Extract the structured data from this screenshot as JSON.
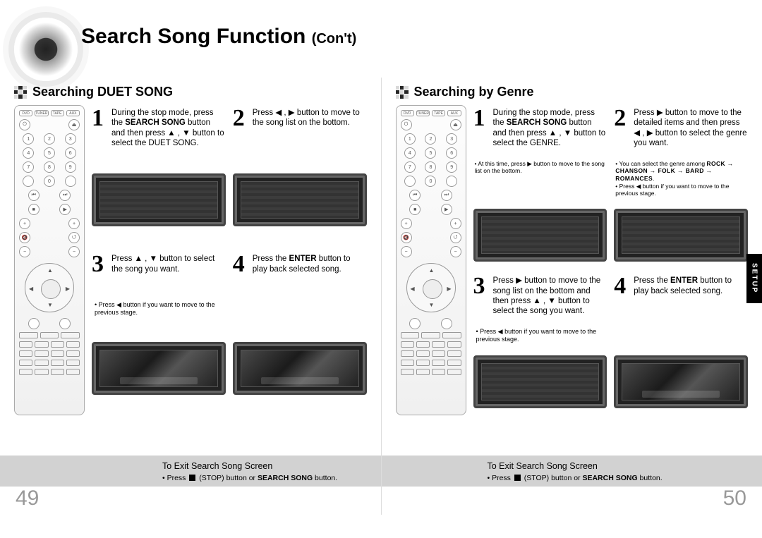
{
  "title_main": "Search Song Function",
  "title_cont": "(Con't)",
  "side_tab": "SETUP",
  "exit_head": "To Exit Search Song Screen",
  "exit_note_a": "Press ",
  "exit_note_b": " (STOP) button or ",
  "exit_note_bold": "SEARCH SONG",
  "exit_note_c": " button.",
  "left": {
    "section": "Searching DUET SONG",
    "step1": "During the stop mode, press the <b>SEARCH SONG</b> button and then press <span class='sym'>▲</span> , <span class='sym'>▼</span> button to select the DUET SONG.",
    "step2": "Press <span class='sym'>◀</span> , <span class='sym'>▶</span> button to move to the song list on the bottom.",
    "step3": "Press <span class='sym'>▲</span> , <span class='sym'>▼</span> button to select the song you want.",
    "step4": "Press the <b>ENTER</b> button to play back selected song.",
    "fine3": "Press <span class='sym'>◀</span> button if you want to move to the previous stage.",
    "pagenum": "49"
  },
  "right": {
    "section": "Searching by Genre",
    "step1": "During the stop mode, press the <b>SEARCH SONG</b> button and then press <span class='sym'>▲</span> , <span class='sym'>▼</span> button to select the GENRE.",
    "step2": "Press <span class='sym'>▶</span> button to move to the detailed items and then press <span class='sym'>◀</span> , <span class='sym'>▶</span> button to select the genre you want.",
    "fine1": "At this time, press <span class='sym'>▶</span> button to move to the song list on the bottom.",
    "fine2a": "You can select the genre among ",
    "fine2b": "ROCK → CHANSON → FOLK → BARD → ROMANCES",
    "fine3": "Press <span class='sym'>◀</span> button if you want to move to the previous stage.",
    "step3": "Press <span class='sym'>▶</span> button to move to the song list on the bottom and then press <span class='sym'>▲</span> , <span class='sym'>▼</span> button to select the song you want.",
    "step4": "Press the <b>ENTER</b> button to play back selected song.",
    "fine_step3": "Press <span class='sym'>◀</span> button if you want to move to the previous stage.",
    "pagenum": "50"
  }
}
